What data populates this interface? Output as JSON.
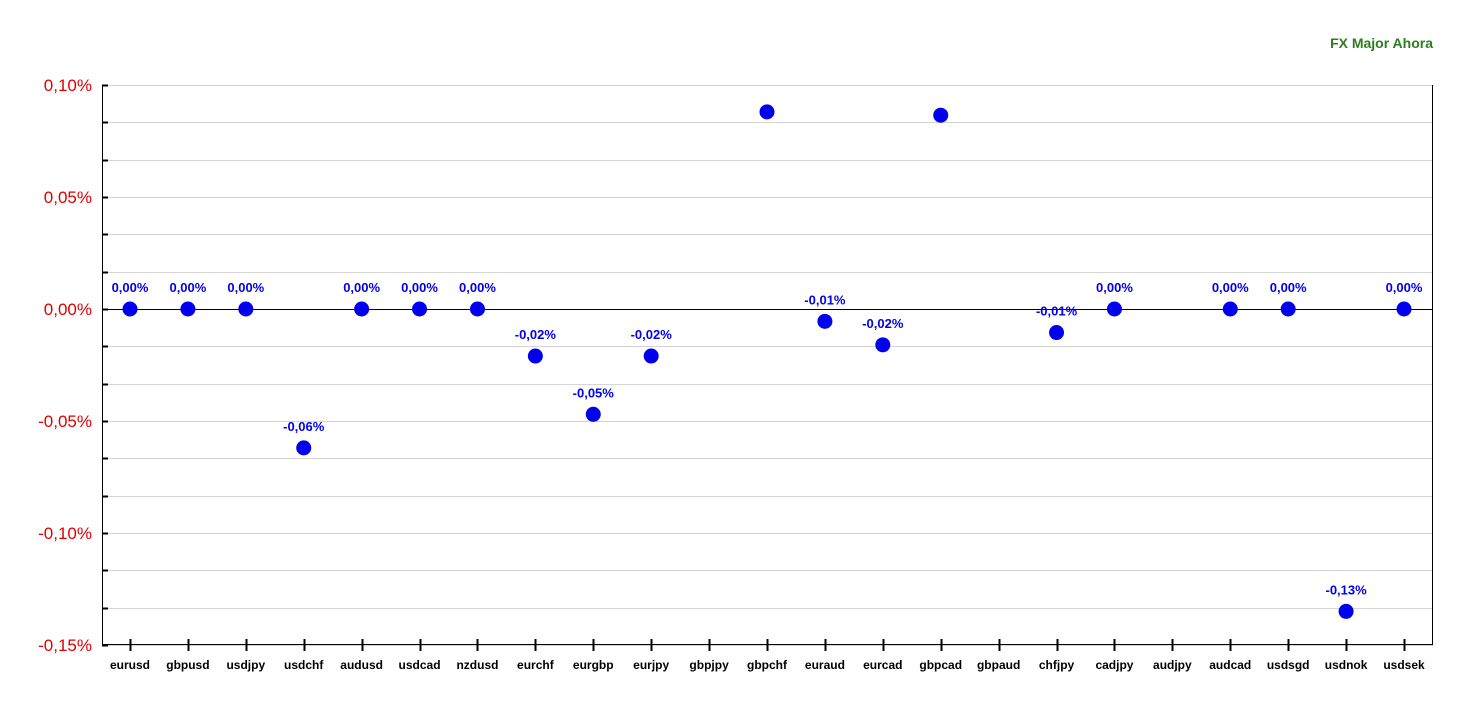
{
  "chart_data": {
    "type": "scatter",
    "title": "FX Major Ahora",
    "xlabel": "",
    "ylabel": "",
    "ylim": [
      -0.15,
      0.1
    ],
    "yticks": [
      0.1,
      0.05,
      0.0,
      -0.05,
      -0.1,
      -0.15
    ],
    "ytick_labels": [
      "0,10%",
      "0,05%",
      "0,00%",
      "-0,05%",
      "-0,10%",
      "-0,15%"
    ],
    "grid": true,
    "point_color": "#0000ee",
    "ytick_color": "#e00000",
    "title_color": "#2e7d1e",
    "categories": [
      "eurusd",
      "gbpusd",
      "usdjpy",
      "usdchf",
      "audusd",
      "usdcad",
      "nzdusd",
      "eurchf",
      "eurgbp",
      "eurjpy",
      "gbpjpy",
      "gbpchf",
      "euraud",
      "eurcad",
      "gbpcad",
      "gbpaud",
      "chfjpy",
      "cadjpy",
      "audjpy",
      "audcad",
      "usdsgd",
      "usdnok",
      "usdsek"
    ],
    "values": [
      0.0,
      0.0,
      0.0,
      -0.062,
      0.0,
      0.0,
      0.0,
      -0.021,
      -0.047,
      -0.021,
      null,
      0.088,
      -0.0055,
      -0.016,
      0.0865,
      null,
      -0.0105,
      0.0,
      null,
      0.0,
      0.0,
      -0.135,
      0.0
    ],
    "labels": [
      "0,00%",
      "0,00%",
      "0,00%",
      "-0,06%",
      "0,00%",
      "0,00%",
      "0,00%",
      "-0,02%",
      "-0,05%",
      "-0,02%",
      "",
      "",
      "-0,01%",
      "-0,02%",
      "",
      "",
      "-0,01%",
      "0,00%",
      "",
      "0,00%",
      "0,00%",
      "-0,13%",
      "0,00%"
    ]
  }
}
